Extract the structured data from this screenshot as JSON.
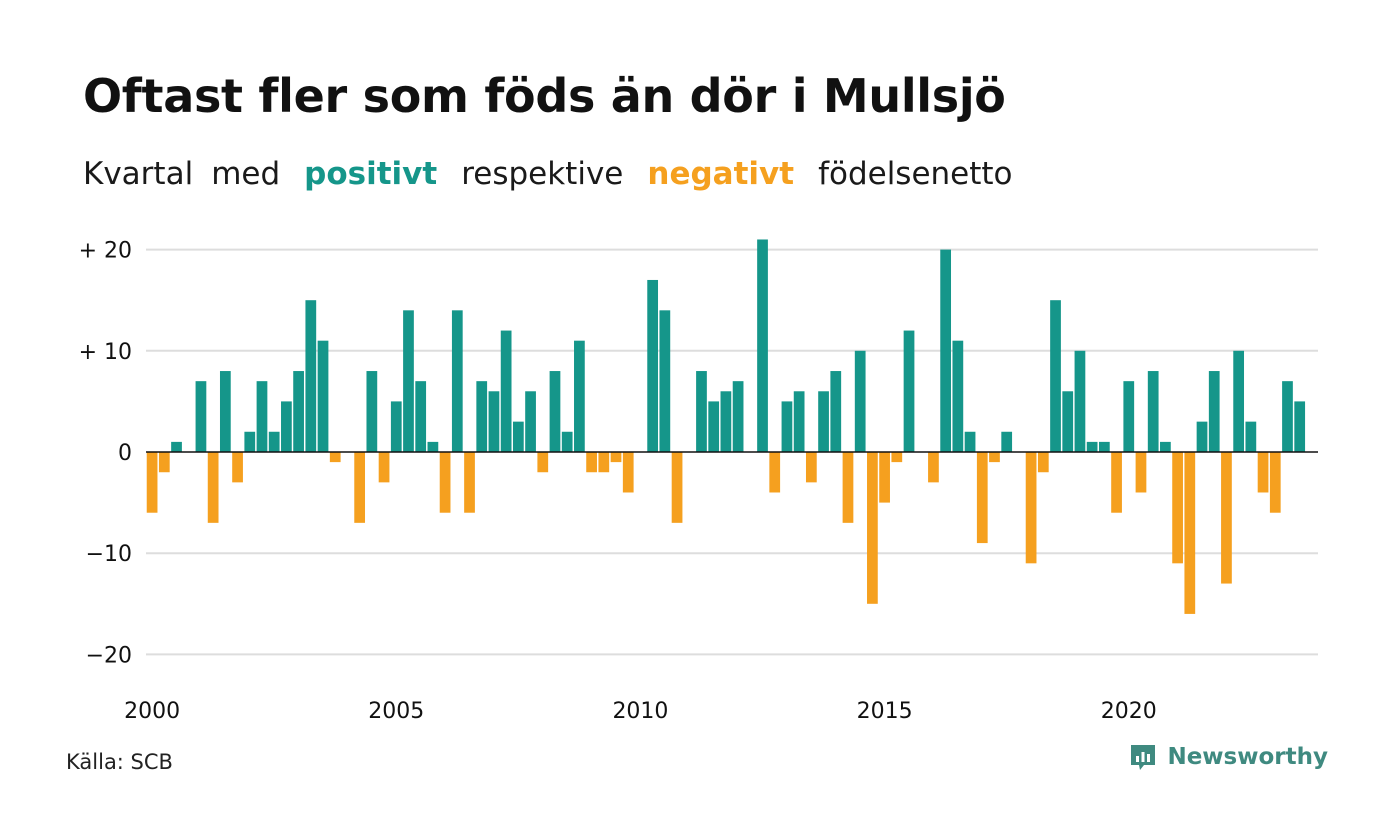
{
  "title": "Oftast fler som föds än dör i Mullsjö",
  "subtitle": {
    "part1": "Kvartal",
    "part2": "med",
    "positive": "positivt",
    "part3": "respektive",
    "negative": "negativt",
    "part4": "födelsenetto"
  },
  "source": "Källa: SCB",
  "brand": {
    "name": "Newsworthy",
    "icon": "newsworthy-logo-icon"
  },
  "colors": {
    "positive": "#15968a",
    "negative": "#f5a01f",
    "grid": "#dddddd",
    "axis": "#111111",
    "brand": "#3f8a80"
  },
  "chart_data": {
    "type": "bar",
    "x_start": "2000 Q1",
    "x_end": "2023 Q4",
    "frequency": "quarter",
    "ylim": [
      -22,
      21
    ],
    "y_ticks": [
      20,
      10,
      0,
      -10,
      -20
    ],
    "y_tick_labels": [
      "+ 20",
      "+ 10",
      "0",
      "−10",
      "−20"
    ],
    "x_tick_labels": [
      "2000",
      "2005",
      "2010",
      "2015",
      "2020"
    ],
    "grid": true,
    "values": [
      -6,
      -2,
      1,
      0,
      7,
      -7,
      8,
      -3,
      2,
      7,
      2,
      5,
      8,
      15,
      11,
      -1,
      0,
      -7,
      8,
      -3,
      5,
      14,
      7,
      1,
      -6,
      14,
      -6,
      7,
      6,
      12,
      3,
      6,
      -2,
      8,
      2,
      11,
      -2,
      -2,
      -1,
      -4,
      0,
      17,
      14,
      -7,
      0,
      8,
      5,
      6,
      7,
      0,
      21,
      -4,
      5,
      6,
      -3,
      6,
      8,
      -7,
      10,
      -15,
      -5,
      -1,
      12,
      0,
      -3,
      20,
      11,
      2,
      -9,
      -1,
      2,
      0,
      -11,
      -2,
      15,
      6,
      10,
      1,
      1,
      -6,
      7,
      -4,
      8,
      1,
      -11,
      -16,
      3,
      8,
      -13,
      10,
      3,
      -4,
      -6,
      7,
      5,
      0
    ]
  }
}
